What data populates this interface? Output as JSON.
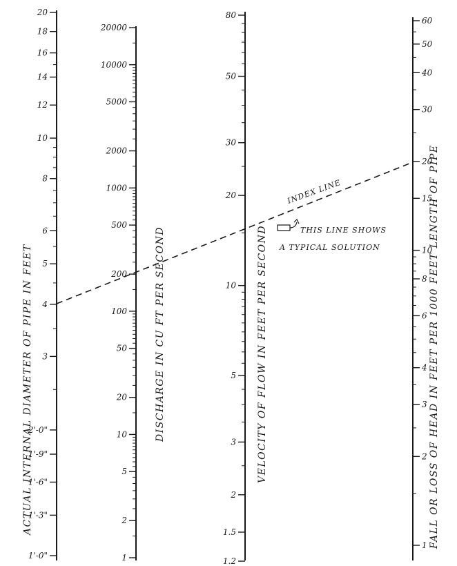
{
  "axes": {
    "pipe_diameter": {
      "title": "ACTUAL INTERNAL DIAMETER OF PIPE IN FEET",
      "ticks": [
        {
          "label": "20",
          "value": 20
        },
        {
          "label": "18",
          "value": 18
        },
        {
          "label": "16",
          "value": 16
        },
        {
          "label": "14",
          "value": 14
        },
        {
          "label": "12",
          "value": 12
        },
        {
          "label": "10",
          "value": 10
        },
        {
          "label": "8",
          "value": 8
        },
        {
          "label": "6",
          "value": 6
        },
        {
          "label": "5",
          "value": 5
        },
        {
          "label": "4",
          "value": 4
        },
        {
          "label": "3",
          "value": 3
        },
        {
          "label": "2'-0\"",
          "value": 2.0
        },
        {
          "label": "1'-9\"",
          "value": 1.75
        },
        {
          "label": "1'-6\"",
          "value": 1.5
        },
        {
          "label": "1'-3\"",
          "value": 1.25
        },
        {
          "label": "1'-0\"",
          "value": 1.0
        }
      ]
    },
    "discharge": {
      "title": "DISCHARGE IN CU FT PER SECOND",
      "ticks": [
        {
          "label": "20000",
          "value": 20000
        },
        {
          "label": "10000",
          "value": 10000
        },
        {
          "label": "5000",
          "value": 5000
        },
        {
          "label": "2000",
          "value": 2000
        },
        {
          "label": "1000",
          "value": 1000
        },
        {
          "label": "500",
          "value": 500
        },
        {
          "label": "200",
          "value": 200
        },
        {
          "label": "100",
          "value": 100
        },
        {
          "label": "50",
          "value": 50
        },
        {
          "label": "20",
          "value": 20
        },
        {
          "label": "10",
          "value": 10
        },
        {
          "label": "5",
          "value": 5
        },
        {
          "label": "2",
          "value": 2
        },
        {
          "label": "1",
          "value": 1
        }
      ]
    },
    "velocity": {
      "title": "VELOCITY OF FLOW IN FEET PER SECOND",
      "ticks": [
        {
          "label": "80",
          "value": 80
        },
        {
          "label": "50",
          "value": 50
        },
        {
          "label": "30",
          "value": 30
        },
        {
          "label": "20",
          "value": 20
        },
        {
          "label": "10",
          "value": 10
        },
        {
          "label": "5",
          "value": 5
        },
        {
          "label": "3",
          "value": 3
        },
        {
          "label": "2",
          "value": 2
        },
        {
          "label": "1.5",
          "value": 1.5
        },
        {
          "label": "1.2",
          "value": 1.2
        }
      ]
    },
    "head_loss": {
      "title": "FALL OR LOSS OF HEAD IN FEET PER 1000 FEET LENGTH OF PIPE",
      "ticks": [
        {
          "label": "60",
          "value": 60
        },
        {
          "label": "50",
          "value": 50
        },
        {
          "label": "40",
          "value": 40
        },
        {
          "label": "30",
          "value": 30
        },
        {
          "label": "20",
          "value": 20
        },
        {
          "label": "15",
          "value": 15
        },
        {
          "label": "10",
          "value": 10
        },
        {
          "label": "8",
          "value": 8
        },
        {
          "label": "6",
          "value": 6
        },
        {
          "label": "4",
          "value": 4
        },
        {
          "label": "3",
          "value": 3
        },
        {
          "label": "2",
          "value": 2
        },
        {
          "label": "1",
          "value": 1
        }
      ]
    }
  },
  "index_line": {
    "label": "INDEX LINE",
    "note_line1": "THIS LINE SHOWS",
    "note_line2": "A TYPICAL SOLUTION",
    "solution": {
      "pipe_diameter": 4,
      "discharge": 200,
      "velocity": 16,
      "head_loss": 20
    }
  }
}
